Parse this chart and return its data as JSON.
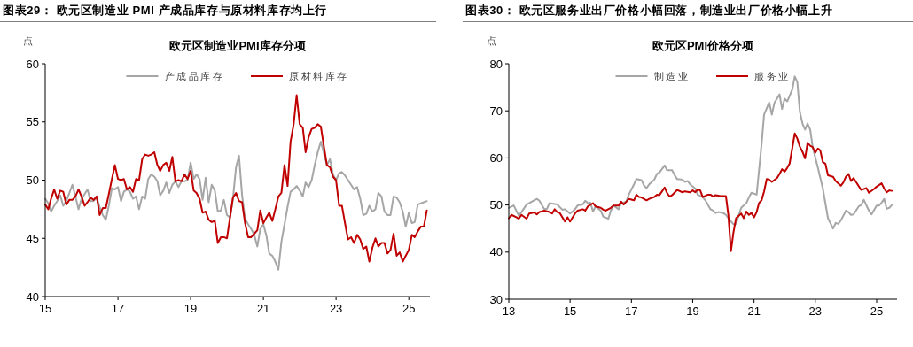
{
  "chart_data": [
    {
      "type": "line",
      "title": "图表29： 欧元区制造业 PMI 产成品库存与原材料库存均上行",
      "subtitle": "欧元区制造业PMI库存分项",
      "ylabel": "点",
      "x": [
        "2015-01",
        "2015-02",
        "2015-03",
        "2015-04",
        "2015-05",
        "2015-06",
        "2015-07",
        "2015-08",
        "2015-09",
        "2015-10",
        "2015-11",
        "2015-12",
        "2016-01",
        "2016-02",
        "2016-03",
        "2016-04",
        "2016-05",
        "2016-06",
        "2016-07",
        "2016-08",
        "2016-09",
        "2016-10",
        "2016-11",
        "2016-12",
        "2017-01",
        "2017-02",
        "2017-03",
        "2017-04",
        "2017-05",
        "2017-06",
        "2017-07",
        "2017-08",
        "2017-09",
        "2017-10",
        "2017-11",
        "2017-12",
        "2018-01",
        "2018-02",
        "2018-03",
        "2018-04",
        "2018-05",
        "2018-06",
        "2018-07",
        "2018-08",
        "2018-09",
        "2018-10",
        "2018-11",
        "2018-12",
        "2019-01",
        "2019-02",
        "2019-03",
        "2019-04",
        "2019-05",
        "2019-06",
        "2019-07",
        "2019-08",
        "2019-09",
        "2019-10",
        "2019-11",
        "2019-12",
        "2020-01",
        "2020-02",
        "2020-03",
        "2020-04",
        "2020-05",
        "2020-06",
        "2020-07",
        "2020-08",
        "2020-09",
        "2020-10",
        "2020-11",
        "2020-12",
        "2021-01",
        "2021-02",
        "2021-03",
        "2021-04",
        "2021-05",
        "2021-06",
        "2021-07",
        "2021-08",
        "2021-09",
        "2021-10",
        "2021-11",
        "2021-12",
        "2022-01",
        "2022-02",
        "2022-03",
        "2022-04",
        "2022-05",
        "2022-06",
        "2022-07",
        "2022-08",
        "2022-09",
        "2022-10",
        "2022-11",
        "2022-12",
        "2023-01",
        "2023-02",
        "2023-03",
        "2023-04",
        "2023-05",
        "2023-06",
        "2023-07",
        "2023-08",
        "2023-09",
        "2023-10",
        "2023-11",
        "2023-12",
        "2024-01",
        "2024-02",
        "2024-03",
        "2024-04",
        "2024-05",
        "2024-06",
        "2024-07",
        "2024-08",
        "2024-09",
        "2024-10",
        "2024-11",
        "2024-12",
        "2025-01",
        "2025-02",
        "2025-03",
        "2025-04",
        "2025-05",
        "2025-06",
        "2025-07"
      ],
      "series": [
        {
          "name": "产成品库存",
          "color": "#a6a6a6",
          "values": [
            48.4,
            48.0,
            47.3,
            47.8,
            48.2,
            48.7,
            47.8,
            48.2,
            48.9,
            49.6,
            48.6,
            47.5,
            48.4,
            48.8,
            49.2,
            48.2,
            48.2,
            48.5,
            47.7,
            47.0,
            46.6,
            47.8,
            49.3,
            49.2,
            49.4,
            48.2,
            49.0,
            49.2,
            49.0,
            48.4,
            48.6,
            47.5,
            48.6,
            48.4,
            50.1,
            50.5,
            50.3,
            49.9,
            48.7,
            49.1,
            49.8,
            48.9,
            49.6,
            49.9,
            49.4,
            49.9,
            49.9,
            50.0,
            51.5,
            50.1,
            50.5,
            50.1,
            48.3,
            50.2,
            48.1,
            49.6,
            49.1,
            47.3,
            47.4,
            48.3,
            47.0,
            46.8,
            48.4,
            51.1,
            52.1,
            48.7,
            46.7,
            46.2,
            45.8,
            45.3,
            44.3,
            45.8,
            46.2,
            45.2,
            43.7,
            43.5,
            43.0,
            42.3,
            44.7,
            46.2,
            47.7,
            49.0,
            49.2,
            49.5,
            49.1,
            48.6,
            49.8,
            49.4,
            50.0,
            51.3,
            52.4,
            53.3,
            52.3,
            51.3,
            51.8,
            50.5,
            50.0,
            50.6,
            50.7,
            50.4,
            50.0,
            49.6,
            49.2,
            49.4,
            48.4,
            47.0,
            47.1,
            47.8,
            47.3,
            47.5,
            48.9,
            48.6,
            47.3,
            47.0,
            47.0,
            48.6,
            48.5,
            48.1,
            47.3,
            46.0,
            47.2,
            46.3,
            46.4,
            47.9,
            48.0,
            48.1,
            48.2
          ]
        },
        {
          "name": "原材料库存",
          "color": "#c00000",
          "values": [
            47.9,
            47.5,
            48.4,
            49.2,
            48.4,
            49.1,
            49.0,
            47.9,
            48.3,
            48.3,
            48.6,
            49.2,
            48.6,
            47.8,
            48.1,
            48.5,
            48.3,
            48.6,
            47.0,
            47.6,
            47.6,
            48.8,
            50.1,
            51.3,
            50.1,
            50.0,
            50.1,
            49.2,
            49.4,
            49.0,
            50.1,
            50.0,
            51.8,
            52.2,
            52.1,
            52.2,
            52.4,
            51.3,
            50.8,
            51.3,
            51.5,
            50.8,
            52.0,
            49.9,
            50.0,
            49.9,
            50.5,
            50.1,
            50.8,
            49.1,
            48.9,
            48.4,
            47.2,
            47.3,
            46.6,
            46.4,
            46.5,
            44.6,
            45.1,
            45.1,
            45.0,
            46.8,
            48.5,
            48.9,
            48.2,
            48.1,
            46.3,
            45.1,
            45.1,
            45.4,
            45.7,
            47.4,
            46.3,
            46.8,
            47.2,
            46.5,
            47.5,
            48.6,
            48.9,
            51.3,
            49.5,
            53.3,
            54.8,
            57.3,
            54.8,
            54.5,
            52.4,
            53.7,
            54.4,
            54.5,
            54.8,
            54.6,
            52.9,
            51.3,
            51.1,
            50.3,
            50.0,
            47.8,
            47.8,
            46.3,
            44.9,
            45.1,
            44.6,
            45.3,
            44.9,
            44.1,
            44.3,
            43.0,
            44.2,
            45.0,
            44.3,
            44.6,
            44.6,
            43.7,
            44.0,
            45.4,
            43.5,
            43.8,
            43.0,
            43.5,
            44.0,
            45.3,
            45.1,
            45.6,
            46.0,
            46.0,
            47.4
          ]
        }
      ],
      "xlim": [
        "2015-01",
        "2025-08"
      ],
      "xticks": [
        {
          "value": "2015-01",
          "label": "15"
        },
        {
          "value": "2017-01",
          "label": "17"
        },
        {
          "value": "2019-01",
          "label": "19"
        },
        {
          "value": "2021-01",
          "label": "21"
        },
        {
          "value": "2023-01",
          "label": "23"
        },
        {
          "value": "2025-01",
          "label": "25"
        }
      ],
      "ylim": [
        40,
        60
      ],
      "yticks": [
        40,
        45,
        50,
        55,
        60
      ],
      "legend": "top"
    },
    {
      "type": "line",
      "title": "图表30： 欧元区服务业出厂价格小幅回落，制造业出厂价格小幅上升",
      "subtitle": "欧元区PMI价格分项",
      "ylabel": "点",
      "series": [
        {
          "name": "制造业",
          "color": "#a6a6a6",
          "x": [
            "2013-01",
            "2013-03",
            "2013-05",
            "2013-06",
            "2013-08",
            "2013-10",
            "2013-12",
            "2014-01",
            "2014-03",
            "2014-04",
            "2014-05",
            "2014-07",
            "2014-08",
            "2014-10",
            "2014-11",
            "2015-01",
            "2015-03",
            "2015-04",
            "2015-06",
            "2015-07",
            "2015-08",
            "2015-09",
            "2015-10",
            "2015-11",
            "2016-01",
            "2016-02",
            "2016-04",
            "2016-05",
            "2016-06",
            "2016-08",
            "2016-09",
            "2016-11",
            "2016-12",
            "2017-02",
            "2017-03",
            "2017-05",
            "2017-06",
            "2017-07",
            "2017-08",
            "2017-10",
            "2017-11",
            "2017-12",
            "2018-02",
            "2018-03",
            "2018-05",
            "2018-06",
            "2018-07",
            "2018-09",
            "2018-10",
            "2018-11",
            "2018-12",
            "2019-02",
            "2019-03",
            "2019-05",
            "2019-06",
            "2019-08",
            "2019-09",
            "2019-10",
            "2019-11",
            "2020-01",
            "2020-02",
            "2020-03",
            "2020-05",
            "2020-06",
            "2020-08",
            "2020-10",
            "2020-11",
            "2020-12",
            "2021-02",
            "2021-03",
            "2021-04",
            "2021-05",
            "2021-07",
            "2021-08",
            "2021-09",
            "2021-11",
            "2021-12",
            "2022-01",
            "2022-02",
            "2022-04",
            "2022-05",
            "2022-06",
            "2022-07",
            "2022-08",
            "2022-09",
            "2022-10",
            "2022-11",
            "2022-12",
            "2023-02",
            "2023-04",
            "2023-05",
            "2023-06",
            "2023-08",
            "2023-09",
            "2023-10",
            "2023-11",
            "2024-01",
            "2024-02",
            "2024-03",
            "2024-04",
            "2024-06",
            "2024-07",
            "2024-08",
            "2024-10",
            "2024-11",
            "2025-01",
            "2025-02",
            "2025-03",
            "2025-04",
            "2025-05",
            "2025-06",
            "2025-07"
          ],
          "values": [
            49.4,
            49.9,
            47.7,
            48.5,
            50.1,
            50.7,
            51.3,
            50.9,
            49.1,
            49.2,
            50.4,
            50.2,
            50.1,
            49.0,
            49.1,
            48.2,
            49.1,
            49.9,
            50.1,
            50.9,
            50.4,
            50.5,
            48.6,
            49.7,
            48.8,
            47.5,
            47.1,
            48.8,
            49.9,
            49.1,
            50.4,
            50.7,
            52.2,
            54.4,
            55.5,
            55.3,
            54.1,
            53.6,
            54.4,
            55.4,
            56.6,
            56.9,
            58.4,
            57.4,
            57.4,
            56.3,
            55.5,
            55.4,
            54.9,
            55.1,
            54.4,
            53.5,
            52.2,
            51.7,
            51.0,
            49.1,
            48.8,
            48.3,
            48.5,
            48.3,
            47.9,
            47.2,
            45.9,
            46.0,
            49.4,
            50.4,
            51.6,
            52.6,
            52.2,
            57.3,
            62.9,
            69.2,
            71.8,
            69.2,
            71.7,
            73.5,
            70.4,
            72.6,
            72.0,
            74.5,
            77.3,
            76.1,
            69.8,
            67.3,
            66.0,
            67.3,
            66.0,
            62.3,
            57.9,
            53.5,
            50.4,
            47.2,
            45.0,
            46.2,
            46.0,
            46.7,
            48.8,
            48.5,
            47.9,
            48.0,
            49.7,
            50.0,
            51.1,
            48.8,
            48.0,
            49.9,
            49.9,
            50.5,
            51.3,
            49.2,
            49.4,
            50.0
          ]
        },
        {
          "name": "服务业",
          "color": "#c00000",
          "x": [
            "2013-01",
            "2013-02",
            "2013-04",
            "2013-05",
            "2013-06",
            "2013-08",
            "2013-09",
            "2013-11",
            "2013-12",
            "2014-01",
            "2014-03",
            "2014-05",
            "2014-06",
            "2014-07",
            "2014-08",
            "2014-09",
            "2014-11",
            "2014-12",
            "2015-01",
            "2015-03",
            "2015-04",
            "2015-06",
            "2015-07",
            "2015-08",
            "2015-10",
            "2015-11",
            "2016-01",
            "2016-02",
            "2016-03",
            "2016-04",
            "2016-05",
            "2016-06",
            "2016-08",
            "2016-09",
            "2016-10",
            "2016-12",
            "2017-02",
            "2017-03",
            "2017-04",
            "2017-05",
            "2017-07",
            "2017-08",
            "2017-10",
            "2017-11",
            "2017-12",
            "2018-02",
            "2018-03",
            "2018-04",
            "2018-05",
            "2018-07",
            "2018-09",
            "2018-10",
            "2018-12",
            "2019-01",
            "2019-02",
            "2019-03",
            "2019-04",
            "2019-05",
            "2019-07",
            "2019-08",
            "2019-09",
            "2019-10",
            "2019-12",
            "2020-02",
            "2020-03",
            "2020-04",
            "2020-05",
            "2020-06",
            "2020-08",
            "2020-09",
            "2020-10",
            "2020-11",
            "2020-12",
            "2021-01",
            "2021-02",
            "2021-03",
            "2021-04",
            "2021-05",
            "2021-06",
            "2021-07",
            "2021-08",
            "2021-10",
            "2021-11",
            "2021-12",
            "2022-01",
            "2022-02",
            "2022-03",
            "2022-04",
            "2022-05",
            "2022-06",
            "2022-07",
            "2022-08",
            "2022-09",
            "2022-10",
            "2022-11",
            "2022-12",
            "2023-01",
            "2023-02",
            "2023-03",
            "2023-04",
            "2023-05",
            "2023-06",
            "2023-08",
            "2023-09",
            "2023-11",
            "2023-12",
            "2024-01",
            "2024-02",
            "2024-03",
            "2024-04",
            "2024-06",
            "2024-07",
            "2024-09",
            "2024-10",
            "2024-12",
            "2025-01",
            "2025-03",
            "2025-04",
            "2025-05",
            "2025-06",
            "2025-07"
          ],
          "values": [
            47.2,
            47.9,
            47.4,
            47.1,
            47.9,
            47.1,
            48.2,
            48.4,
            48.0,
            48.5,
            48.8,
            48.5,
            48.2,
            49.1,
            48.5,
            48.3,
            46.5,
            47.4,
            46.5,
            48.2,
            48.8,
            49.1,
            48.8,
            49.7,
            50.4,
            49.7,
            49.4,
            49.0,
            48.8,
            49.1,
            49.4,
            49.9,
            49.9,
            50.7,
            50.1,
            51.3,
            51.0,
            52.2,
            51.7,
            51.6,
            51.0,
            51.3,
            51.7,
            52.2,
            52.1,
            53.7,
            52.6,
            51.8,
            52.1,
            53.2,
            52.7,
            52.9,
            52.7,
            53.1,
            52.7,
            53.3,
            53.1,
            51.7,
            52.2,
            52.2,
            51.8,
            52.1,
            51.9,
            51.9,
            47.9,
            40.2,
            44.2,
            47.2,
            48.2,
            47.2,
            48.6,
            47.9,
            48.3,
            47.4,
            48.5,
            50.4,
            51.0,
            52.9,
            55.5,
            55.4,
            54.9,
            55.7,
            56.6,
            57.6,
            57.1,
            57.9,
            58.8,
            62.0,
            65.2,
            64.1,
            62.4,
            61.3,
            59.9,
            63.2,
            62.6,
            62.3,
            61.1,
            62.0,
            61.6,
            59.1,
            58.8,
            56.3,
            56.0,
            55.1,
            54.1,
            54.8,
            56.0,
            56.6,
            55.1,
            55.7,
            54.0,
            53.2,
            53.6,
            52.6,
            53.4,
            53.9,
            54.6,
            53.5,
            52.7,
            53.1,
            53.0
          ]
        }
      ],
      "xlim": [
        "2013-01",
        "2025-09"
      ],
      "xticks": [
        {
          "value": "2013-01",
          "label": "13"
        },
        {
          "value": "2015-01",
          "label": "15"
        },
        {
          "value": "2017-01",
          "label": "17"
        },
        {
          "value": "2019-01",
          "label": "19"
        },
        {
          "value": "2021-01",
          "label": "21"
        },
        {
          "value": "2023-01",
          "label": "23"
        },
        {
          "value": "2025-01",
          "label": "25"
        }
      ],
      "ylim": [
        30,
        80
      ],
      "yticks": [
        30,
        40,
        50,
        60,
        70,
        80
      ],
      "legend": "top"
    }
  ]
}
